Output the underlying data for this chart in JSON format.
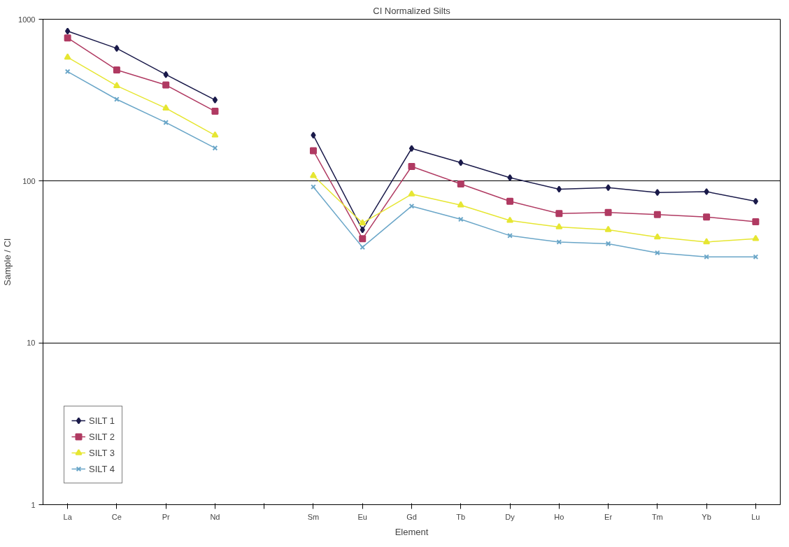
{
  "chart_data": {
    "type": "line",
    "title": "CI Normalized Silts",
    "xlabel": "Element",
    "ylabel": "Sample / CI",
    "categories": [
      "La",
      "Ce",
      "Pr",
      "Nd",
      null,
      "Sm",
      "Eu",
      "Gd",
      "Tb",
      "Dy",
      "Ho",
      "Er",
      "Tm",
      "Yb",
      "Lu"
    ],
    "series": [
      {
        "name": "SILT 1",
        "color": "#1a1a4a",
        "marker": "diamond",
        "values": [
          844,
          661,
          455,
          317,
          null,
          192,
          50,
          159,
          130,
          105,
          89,
          91,
          85,
          86,
          75
        ]
      },
      {
        "name": "SILT 2",
        "color": "#b03a62",
        "marker": "square",
        "values": [
          767,
          486,
          392,
          270,
          null,
          154,
          44,
          123,
          96,
          75,
          63,
          64,
          62,
          60,
          56
        ]
      },
      {
        "name": "SILT 3",
        "color": "#e6e632",
        "marker": "triangle",
        "values": [
          582,
          388,
          282,
          192,
          null,
          108,
          55,
          83,
          71,
          57,
          52,
          50,
          45,
          42,
          44
        ]
      },
      {
        "name": "SILT 4",
        "color": "#6aa6c8",
        "marker": "cross",
        "values": [
          475,
          320,
          230,
          160,
          null,
          92,
          39,
          70,
          58,
          46,
          42,
          41,
          36,
          34,
          34
        ]
      }
    ],
    "log": true,
    "ylim": [
      1,
      1000
    ],
    "yticks": [
      1,
      10,
      100,
      1000
    ],
    "grid": "y",
    "legend": "bottom left",
    "line_style": "solid"
  }
}
